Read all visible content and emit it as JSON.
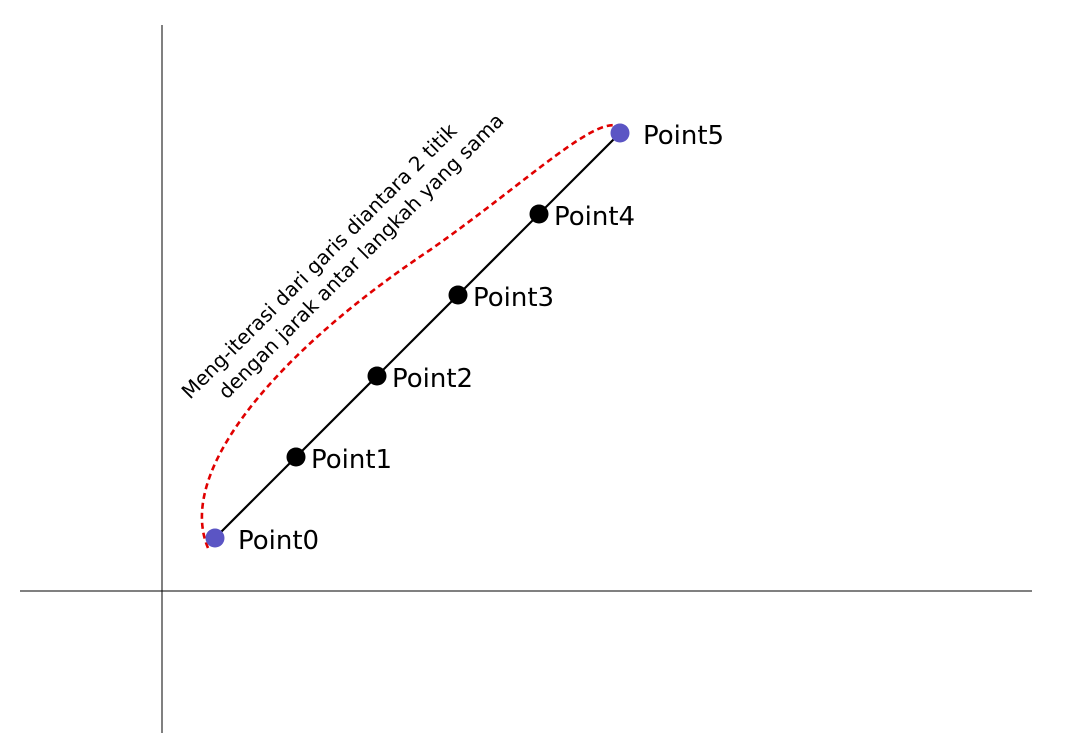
{
  "annotation": {
    "line1": "Meng-iterasi dari garis diantara 2 titik",
    "line2": "dengan jarak antar langkah yang sama"
  },
  "points": [
    {
      "label": "Point0",
      "role": "endpoint"
    },
    {
      "label": "Point1",
      "role": "intermediate"
    },
    {
      "label": "Point2",
      "role": "intermediate"
    },
    {
      "label": "Point3",
      "role": "intermediate"
    },
    {
      "label": "Point4",
      "role": "intermediate"
    },
    {
      "label": "Point5",
      "role": "endpoint"
    }
  ],
  "colors": {
    "endpoint": "#5b55c4",
    "intermediate": "#000000",
    "arc": "#e00000",
    "line": "#000000"
  }
}
